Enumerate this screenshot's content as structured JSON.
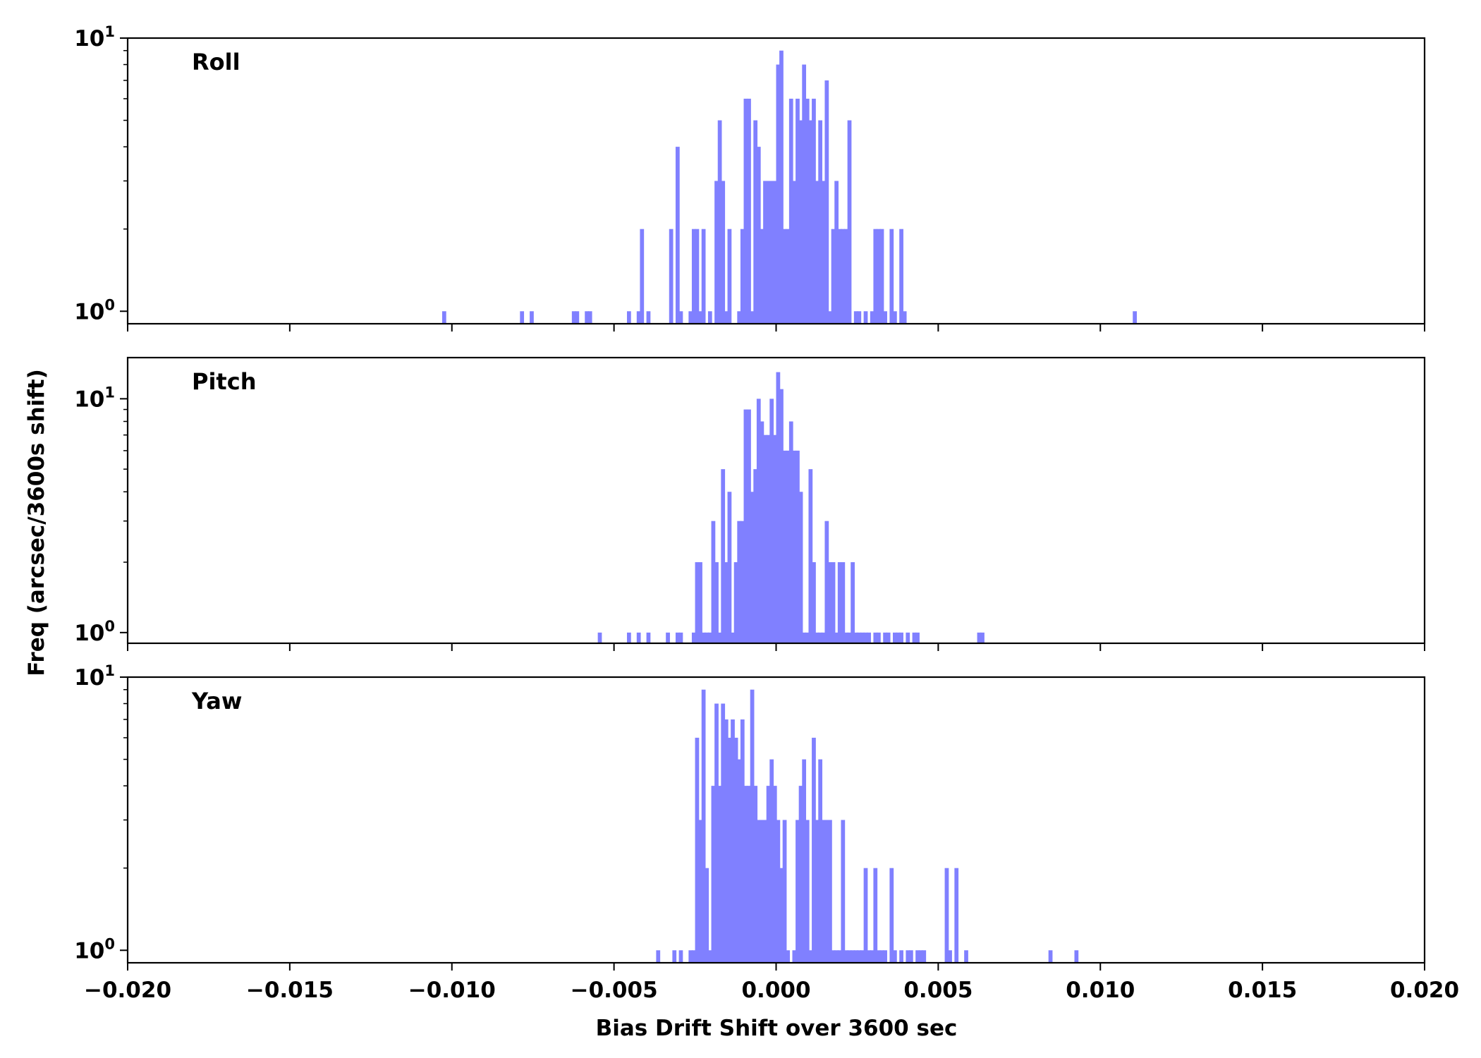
{
  "chart_data": {
    "type": "bar",
    "chart_kind": "histogram",
    "layout": "three stacked panels sharing one x axis",
    "shared_xlabel": "Bias Drift Shift over 3600 sec",
    "shared_ylabel": "Freq (arcsec/3600s shift)",
    "xlim": [
      -0.02,
      0.02
    ],
    "x_ticks": [
      -0.02,
      -0.015,
      -0.01,
      -0.005,
      0.0,
      0.005,
      0.01,
      0.015,
      0.02
    ],
    "x_tick_labels": [
      "−0.020",
      "−0.015",
      "−0.010",
      "−0.005",
      "0.000",
      "0.005",
      "0.010",
      "0.015",
      "0.020"
    ],
    "x_tick_labels_shown_on": "bottom panel only",
    "y_scale": "log",
    "y_tick_base": "10",
    "y_tick_exponents": [
      "0",
      "1"
    ],
    "grid": false,
    "legend": false,
    "bar_color": "#8080ff",
    "bin_width": 0.000125,
    "panels": [
      {
        "name": "Roll",
        "ylim": [
          0.9,
          10
        ],
        "bins": [
          [
            -0.0103,
            1
          ],
          [
            -0.0079,
            1
          ],
          [
            -0.0076,
            1
          ],
          [
            -0.0063,
            1
          ],
          [
            -0.0062,
            1
          ],
          [
            -0.0059,
            1
          ],
          [
            -0.0058,
            1
          ],
          [
            -0.0046,
            1
          ],
          [
            -0.0043,
            1
          ],
          [
            -0.0042,
            2
          ],
          [
            -0.004,
            1
          ],
          [
            -0.0033,
            2
          ],
          [
            -0.0031,
            4
          ],
          [
            -0.003,
            1
          ],
          [
            -0.0027,
            1
          ],
          [
            -0.0026,
            2
          ],
          [
            -0.0025,
            2
          ],
          [
            -0.0024,
            1
          ],
          [
            -0.0023,
            2
          ],
          [
            -0.0021,
            1
          ],
          [
            -0.0019,
            3
          ],
          [
            -0.0018,
            5
          ],
          [
            -0.0017,
            3
          ],
          [
            -0.0016,
            1
          ],
          [
            -0.0015,
            2
          ],
          [
            -0.0012,
            1
          ],
          [
            -0.0011,
            2
          ],
          [
            -0.001,
            6
          ],
          [
            -0.0009,
            6
          ],
          [
            -0.0008,
            1
          ],
          [
            -0.0007,
            5
          ],
          [
            -0.0006,
            4
          ],
          [
            -0.0005,
            2
          ],
          [
            -0.0004,
            3
          ],
          [
            -0.0003,
            3
          ],
          [
            -0.0002,
            3
          ],
          [
            -0.0001,
            3
          ],
          [
            0.0,
            8
          ],
          [
            0.0001,
            9
          ],
          [
            0.0002,
            2
          ],
          [
            0.0003,
            2
          ],
          [
            0.0004,
            6
          ],
          [
            0.0005,
            3
          ],
          [
            0.0006,
            6
          ],
          [
            0.0007,
            5
          ],
          [
            0.0008,
            8
          ],
          [
            0.0009,
            6
          ],
          [
            0.001,
            5
          ],
          [
            0.0011,
            6
          ],
          [
            0.0012,
            3
          ],
          [
            0.0013,
            5
          ],
          [
            0.0014,
            3
          ],
          [
            0.0015,
            7
          ],
          [
            0.0016,
            1
          ],
          [
            0.0017,
            2
          ],
          [
            0.0018,
            3
          ],
          [
            0.0019,
            2
          ],
          [
            0.002,
            2
          ],
          [
            0.0021,
            2
          ],
          [
            0.0022,
            5
          ],
          [
            0.0024,
            1
          ],
          [
            0.0025,
            1
          ],
          [
            0.0027,
            1
          ],
          [
            0.0029,
            1
          ],
          [
            0.003,
            2
          ],
          [
            0.0031,
            2
          ],
          [
            0.0032,
            2
          ],
          [
            0.0033,
            1
          ],
          [
            0.0035,
            2
          ],
          [
            0.0036,
            1
          ],
          [
            0.0038,
            2
          ],
          [
            0.0039,
            1
          ],
          [
            0.011,
            1
          ]
        ]
      },
      {
        "name": "Pitch",
        "ylim": [
          0.9,
          15
        ],
        "bins": [
          [
            -0.0055,
            1
          ],
          [
            -0.0046,
            1
          ],
          [
            -0.0043,
            1
          ],
          [
            -0.004,
            1
          ],
          [
            -0.0034,
            1
          ],
          [
            -0.0031,
            1
          ],
          [
            -0.003,
            1
          ],
          [
            -0.0026,
            1
          ],
          [
            -0.0025,
            2
          ],
          [
            -0.0024,
            2
          ],
          [
            -0.0023,
            1
          ],
          [
            -0.0022,
            1
          ],
          [
            -0.0021,
            1
          ],
          [
            -0.002,
            3
          ],
          [
            -0.0019,
            2
          ],
          [
            -0.0018,
            1
          ],
          [
            -0.0017,
            5
          ],
          [
            -0.0016,
            2
          ],
          [
            -0.0015,
            4
          ],
          [
            -0.0014,
            1
          ],
          [
            -0.0013,
            2
          ],
          [
            -0.0012,
            3
          ],
          [
            -0.0011,
            3
          ],
          [
            -0.001,
            9
          ],
          [
            -0.0009,
            9
          ],
          [
            -0.0008,
            4
          ],
          [
            -0.0007,
            5
          ],
          [
            -0.0006,
            10
          ],
          [
            -0.0005,
            8
          ],
          [
            -0.0004,
            7
          ],
          [
            -0.0003,
            7
          ],
          [
            -0.0002,
            10
          ],
          [
            -0.0001,
            7
          ],
          [
            0.0,
            13
          ],
          [
            0.0001,
            11
          ],
          [
            0.0002,
            6
          ],
          [
            0.0003,
            6
          ],
          [
            0.0004,
            8
          ],
          [
            0.0005,
            6
          ],
          [
            0.0006,
            6
          ],
          [
            0.0007,
            4
          ],
          [
            0.0008,
            1
          ],
          [
            0.0009,
            1
          ],
          [
            0.001,
            5
          ],
          [
            0.0011,
            2
          ],
          [
            0.0012,
            1
          ],
          [
            0.0013,
            1
          ],
          [
            0.0014,
            1
          ],
          [
            0.0015,
            3
          ],
          [
            0.0016,
            2
          ],
          [
            0.0017,
            2
          ],
          [
            0.0018,
            1
          ],
          [
            0.0019,
            2
          ],
          [
            0.002,
            2
          ],
          [
            0.0021,
            1
          ],
          [
            0.0022,
            1
          ],
          [
            0.0023,
            2
          ],
          [
            0.0024,
            1
          ],
          [
            0.0025,
            1
          ],
          [
            0.0026,
            1
          ],
          [
            0.0027,
            1
          ],
          [
            0.0028,
            1
          ],
          [
            0.003,
            1
          ],
          [
            0.0031,
            1
          ],
          [
            0.0033,
            1
          ],
          [
            0.0034,
            1
          ],
          [
            0.0036,
            1
          ],
          [
            0.0037,
            1
          ],
          [
            0.0038,
            1
          ],
          [
            0.004,
            1
          ],
          [
            0.0042,
            1
          ],
          [
            0.0043,
            1
          ],
          [
            0.0062,
            1
          ],
          [
            0.0063,
            1
          ]
        ]
      },
      {
        "name": "Yaw",
        "ylim": [
          0.9,
          10
        ],
        "bins": [
          [
            -0.0037,
            1
          ],
          [
            -0.0032,
            1
          ],
          [
            -0.003,
            1
          ],
          [
            -0.0027,
            1
          ],
          [
            -0.0026,
            1
          ],
          [
            -0.0025,
            6
          ],
          [
            -0.0024,
            3
          ],
          [
            -0.0023,
            9
          ],
          [
            -0.0022,
            2
          ],
          [
            -0.0021,
            1
          ],
          [
            -0.002,
            4
          ],
          [
            -0.0019,
            8
          ],
          [
            -0.0018,
            4
          ],
          [
            -0.0017,
            8
          ],
          [
            -0.0016,
            7
          ],
          [
            -0.0015,
            6
          ],
          [
            -0.0014,
            7
          ],
          [
            -0.0013,
            6
          ],
          [
            -0.0012,
            5
          ],
          [
            -0.0011,
            7
          ],
          [
            -0.001,
            4
          ],
          [
            -0.0009,
            4
          ],
          [
            -0.0008,
            9
          ],
          [
            -0.0007,
            4
          ],
          [
            -0.0006,
            3
          ],
          [
            -0.0005,
            3
          ],
          [
            -0.0004,
            3
          ],
          [
            -0.0003,
            4
          ],
          [
            -0.0002,
            5
          ],
          [
            -0.0001,
            4
          ],
          [
            0.0,
            3
          ],
          [
            0.0001,
            2
          ],
          [
            0.0002,
            3
          ],
          [
            0.0003,
            1
          ],
          [
            0.0005,
            1
          ],
          [
            0.0006,
            3
          ],
          [
            0.0007,
            4
          ],
          [
            0.0008,
            5
          ],
          [
            0.0009,
            3
          ],
          [
            0.001,
            1
          ],
          [
            0.0011,
            6
          ],
          [
            0.0012,
            3
          ],
          [
            0.0013,
            5
          ],
          [
            0.0014,
            3
          ],
          [
            0.0015,
            3
          ],
          [
            0.0016,
            3
          ],
          [
            0.0017,
            1
          ],
          [
            0.0018,
            1
          ],
          [
            0.0019,
            1
          ],
          [
            0.002,
            3
          ],
          [
            0.0021,
            1
          ],
          [
            0.0022,
            1
          ],
          [
            0.0023,
            1
          ],
          [
            0.0024,
            1
          ],
          [
            0.0025,
            1
          ],
          [
            0.0026,
            1
          ],
          [
            0.0027,
            2
          ],
          [
            0.0028,
            1
          ],
          [
            0.0029,
            1
          ],
          [
            0.003,
            2
          ],
          [
            0.0031,
            1
          ],
          [
            0.0032,
            1
          ],
          [
            0.0033,
            1
          ],
          [
            0.0035,
            2
          ],
          [
            0.0036,
            1
          ],
          [
            0.0038,
            1
          ],
          [
            0.004,
            1
          ],
          [
            0.0041,
            1
          ],
          [
            0.0043,
            1
          ],
          [
            0.0044,
            1
          ],
          [
            0.0045,
            1
          ],
          [
            0.0052,
            2
          ],
          [
            0.0053,
            1
          ],
          [
            0.0055,
            2
          ],
          [
            0.0058,
            1
          ],
          [
            0.0084,
            1
          ],
          [
            0.0092,
            1
          ]
        ]
      }
    ]
  }
}
